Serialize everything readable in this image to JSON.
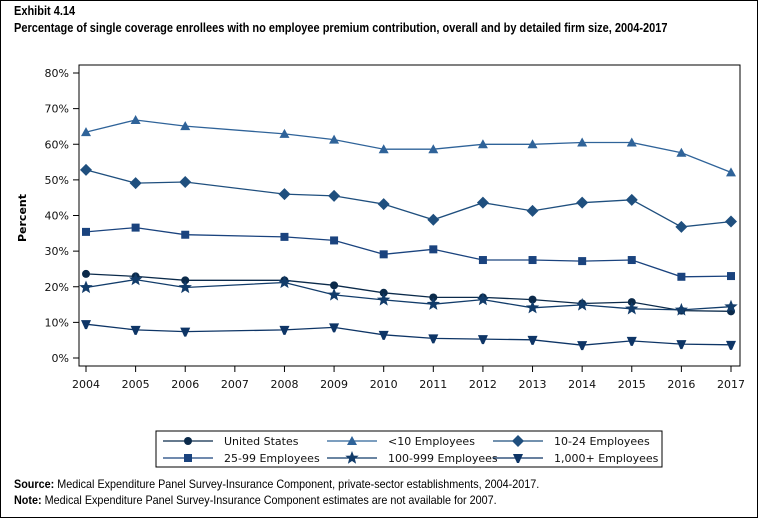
{
  "header": {
    "exhibit": "Exhibit 4.14",
    "title": "Percentage of single coverage enrollees with no employee premium contribution, overall and by detailed firm size, 2004-2017"
  },
  "footer": {
    "source_label": "Source:",
    "source_text": "Medical Expenditure Panel Survey-Insurance Component, private-sector establishments, 2004-2017.",
    "note_label": "Note:",
    "note_text": "Medical Expenditure Panel Survey-Insurance Component estimates are not available for 2007."
  },
  "chart_data": {
    "type": "line",
    "title": "Percentage of single coverage enrollees with no employee premium contribution, overall and by detailed firm size, 2004-2017",
    "xlabel": "",
    "ylabel": "Percent",
    "x_ticks": [
      "2004",
      "2005",
      "2006",
      "2007",
      "2008",
      "2009",
      "2010",
      "2011",
      "2012",
      "2013",
      "2014",
      "2015",
      "2016",
      "2017"
    ],
    "x": [
      2004,
      2005,
      2006,
      2008,
      2009,
      2010,
      2011,
      2012,
      2013,
      2014,
      2015,
      2016,
      2017
    ],
    "xlim": [
      2004,
      2017
    ],
    "ylim": [
      0,
      80
    ],
    "y_ticks": [
      0,
      10,
      20,
      30,
      40,
      50,
      60,
      70,
      80
    ],
    "y_tick_labels": [
      "0%",
      "10%",
      "20%",
      "30%",
      "40%",
      "50%",
      "60%",
      "70%",
      "80%"
    ],
    "grid": false,
    "legend_position": "bottom",
    "series": [
      {
        "name": "United States",
        "marker": "circle",
        "color": "#0b2a4a",
        "values": [
          23.6,
          22.9,
          21.8,
          21.8,
          20.4,
          18.3,
          17.0,
          17.0,
          16.4,
          15.3,
          15.7,
          13.3,
          13.1
        ]
      },
      {
        "name": "<10 Employees",
        "marker": "triangle",
        "color": "#2f6399",
        "values": [
          63.4,
          66.8,
          65.1,
          62.9,
          61.3,
          58.6,
          58.6,
          60.0,
          60.0,
          60.5,
          60.5,
          57.6,
          52.1
        ]
      },
      {
        "name": "10-24 Employees",
        "marker": "diamond",
        "color": "#1f4f7e",
        "values": [
          52.8,
          49.1,
          49.4,
          46.0,
          45.5,
          43.2,
          38.8,
          43.6,
          41.3,
          43.6,
          44.4,
          36.8,
          38.3
        ]
      },
      {
        "name": "25-99 Employees",
        "marker": "square",
        "color": "#1a437e",
        "values": [
          35.4,
          36.6,
          34.6,
          34.0,
          33.0,
          29.1,
          30.5,
          27.5,
          27.5,
          27.2,
          27.5,
          22.8,
          23.0
        ]
      },
      {
        "name": "100-999 Employees",
        "marker": "star",
        "color": "#123c6a",
        "values": [
          19.8,
          22.0,
          19.8,
          21.2,
          17.7,
          16.3,
          15.1,
          16.4,
          14.1,
          14.9,
          13.8,
          13.5,
          14.4
        ]
      },
      {
        "name": "1,000+ Employees",
        "marker": "triangle-down",
        "color": "#0e3566",
        "values": [
          9.5,
          7.9,
          7.4,
          7.9,
          8.6,
          6.5,
          5.5,
          5.3,
          5.1,
          3.6,
          4.8,
          3.9,
          3.7
        ]
      }
    ]
  }
}
